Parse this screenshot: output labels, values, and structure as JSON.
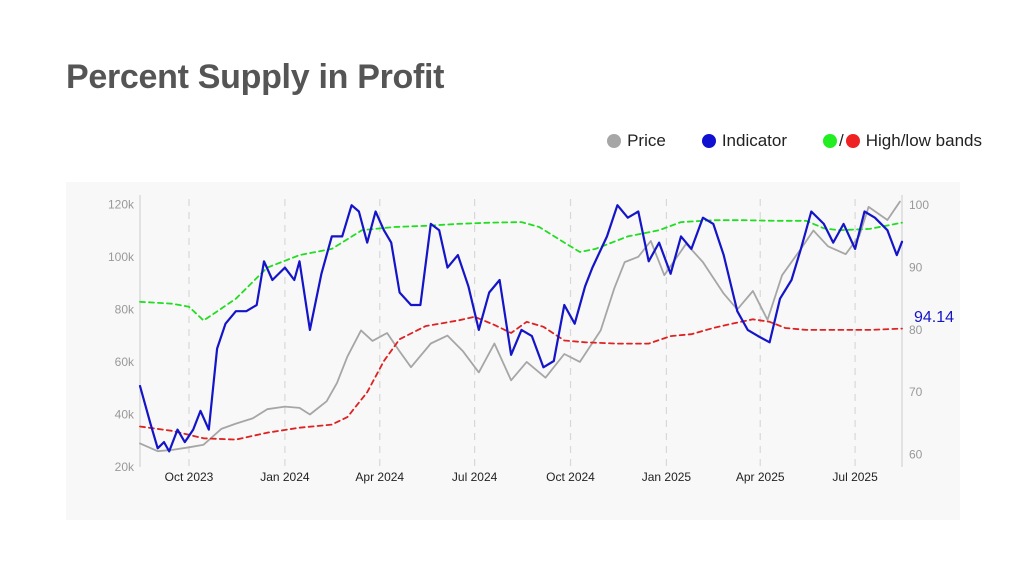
{
  "title": "Percent Supply in Profit",
  "legend": [
    {
      "label": "Price",
      "color": "#a6a6a6",
      "icon": "dot"
    },
    {
      "label": "Indicator",
      "color": "#1010d0",
      "icon": "dot"
    },
    {
      "label": "High/low bands",
      "colors": [
        "#22ee22",
        "#ee2222"
      ],
      "icon": "dot-pair",
      "separator": "/"
    }
  ],
  "colors": {
    "price": "#a6a6a6",
    "indicator": "#1414c8",
    "high_band": "#22dd22",
    "low_band": "#dd2222"
  },
  "chart_data": {
    "type": "line",
    "x_ticks": [
      "Oct 2023",
      "Jan 2024",
      "Apr 2024",
      "Jul 2024",
      "Oct 2024",
      "Jan 2025",
      "Apr 2025",
      "Jul 2025"
    ],
    "x_range": [
      "2023-08-15",
      "2025-08-15"
    ],
    "y_left": {
      "ticks": [
        "20k",
        "40k",
        "60k",
        "80k",
        "100k",
        "120k"
      ],
      "range": [
        20000,
        122000
      ]
    },
    "y_right": {
      "ticks": [
        "60",
        "70",
        "80",
        "90",
        "100"
      ],
      "range": [
        58,
        101
      ]
    },
    "grid": "vertical dashed at month ticks",
    "last_value_label": "94.14",
    "series": [
      {
        "name": "Price",
        "axis": "left",
        "style": "solid",
        "points": [
          [
            "2023-08-15",
            29000
          ],
          [
            "2023-09-01",
            26000
          ],
          [
            "2023-09-15",
            26500
          ],
          [
            "2023-10-01",
            27500
          ],
          [
            "2023-10-15",
            28500
          ],
          [
            "2023-11-01",
            34500
          ],
          [
            "2023-11-15",
            36500
          ],
          [
            "2023-12-01",
            38500
          ],
          [
            "2023-12-15",
            42000
          ],
          [
            "2024-01-01",
            43000
          ],
          [
            "2024-01-15",
            42500
          ],
          [
            "2024-01-25",
            40000
          ],
          [
            "2024-02-10",
            45000
          ],
          [
            "2024-02-20",
            52000
          ],
          [
            "2024-03-01",
            62000
          ],
          [
            "2024-03-14",
            72000
          ],
          [
            "2024-03-25",
            68000
          ],
          [
            "2024-04-08",
            71000
          ],
          [
            "2024-04-20",
            64000
          ],
          [
            "2024-05-01",
            58000
          ],
          [
            "2024-05-20",
            67000
          ],
          [
            "2024-06-05",
            70000
          ],
          [
            "2024-06-20",
            64000
          ],
          [
            "2024-07-05",
            56000
          ],
          [
            "2024-07-20",
            67000
          ],
          [
            "2024-08-05",
            53000
          ],
          [
            "2024-08-20",
            60000
          ],
          [
            "2024-09-07",
            54000
          ],
          [
            "2024-09-25",
            63000
          ],
          [
            "2024-10-10",
            60000
          ],
          [
            "2024-10-30",
            72000
          ],
          [
            "2024-11-12",
            88000
          ],
          [
            "2024-11-22",
            98000
          ],
          [
            "2024-12-05",
            100000
          ],
          [
            "2024-12-17",
            106000
          ],
          [
            "2024-12-30",
            93000
          ],
          [
            "2025-01-20",
            105000
          ],
          [
            "2025-02-05",
            98000
          ],
          [
            "2025-02-25",
            86000
          ],
          [
            "2025-03-10",
            80000
          ],
          [
            "2025-03-25",
            87000
          ],
          [
            "2025-04-08",
            76000
          ],
          [
            "2025-04-22",
            93000
          ],
          [
            "2025-05-10",
            103000
          ],
          [
            "2025-05-22",
            110000
          ],
          [
            "2025-06-05",
            104000
          ],
          [
            "2025-06-22",
            101000
          ],
          [
            "2025-07-05",
            108000
          ],
          [
            "2025-07-14",
            119000
          ],
          [
            "2025-08-01",
            114000
          ],
          [
            "2025-08-13",
            121000
          ]
        ]
      },
      {
        "name": "Indicator",
        "axis": "right",
        "style": "solid",
        "points": [
          [
            "2023-08-15",
            71
          ],
          [
            "2023-08-25",
            65
          ],
          [
            "2023-09-01",
            61
          ],
          [
            "2023-09-07",
            62
          ],
          [
            "2023-09-12",
            60.5
          ],
          [
            "2023-09-20",
            64
          ],
          [
            "2023-09-27",
            62
          ],
          [
            "2023-10-05",
            64
          ],
          [
            "2023-10-12",
            67
          ],
          [
            "2023-10-20",
            64
          ],
          [
            "2023-10-28",
            77
          ],
          [
            "2023-11-05",
            81
          ],
          [
            "2023-11-15",
            83
          ],
          [
            "2023-11-25",
            83
          ],
          [
            "2023-12-05",
            84
          ],
          [
            "2023-12-12",
            91
          ],
          [
            "2023-12-20",
            88
          ],
          [
            "2024-01-01",
            90
          ],
          [
            "2024-01-10",
            88
          ],
          [
            "2024-01-15",
            91
          ],
          [
            "2024-01-25",
            80
          ],
          [
            "2024-02-05",
            89
          ],
          [
            "2024-02-15",
            95
          ],
          [
            "2024-02-25",
            95
          ],
          [
            "2024-03-05",
            100
          ],
          [
            "2024-03-12",
            99
          ],
          [
            "2024-03-20",
            94
          ],
          [
            "2024-03-28",
            99
          ],
          [
            "2024-04-05",
            96
          ],
          [
            "2024-04-12",
            94
          ],
          [
            "2024-04-20",
            86
          ],
          [
            "2024-05-01",
            84
          ],
          [
            "2024-05-10",
            84
          ],
          [
            "2024-05-20",
            97
          ],
          [
            "2024-05-28",
            96
          ],
          [
            "2024-06-05",
            90
          ],
          [
            "2024-06-15",
            92
          ],
          [
            "2024-06-25",
            87
          ],
          [
            "2024-07-05",
            80
          ],
          [
            "2024-07-15",
            86
          ],
          [
            "2024-07-25",
            88
          ],
          [
            "2024-08-05",
            76
          ],
          [
            "2024-08-15",
            80
          ],
          [
            "2024-08-25",
            79
          ],
          [
            "2024-09-05",
            74
          ],
          [
            "2024-09-15",
            75
          ],
          [
            "2024-09-25",
            84
          ],
          [
            "2024-10-05",
            81
          ],
          [
            "2024-10-15",
            87
          ],
          [
            "2024-10-22",
            90
          ],
          [
            "2024-11-05",
            95
          ],
          [
            "2024-11-15",
            100
          ],
          [
            "2024-11-25",
            98
          ],
          [
            "2024-12-05",
            99
          ],
          [
            "2024-12-15",
            91
          ],
          [
            "2024-12-25",
            94
          ],
          [
            "2025-01-05",
            89
          ],
          [
            "2025-01-15",
            95
          ],
          [
            "2025-01-25",
            93
          ],
          [
            "2025-02-05",
            98
          ],
          [
            "2025-02-15",
            97
          ],
          [
            "2025-02-25",
            92
          ],
          [
            "2025-03-10",
            83
          ],
          [
            "2025-03-20",
            80
          ],
          [
            "2025-03-30",
            79
          ],
          [
            "2025-04-10",
            78
          ],
          [
            "2025-04-20",
            85
          ],
          [
            "2025-05-01",
            88
          ],
          [
            "2025-05-10",
            93
          ],
          [
            "2025-05-20",
            99
          ],
          [
            "2025-06-01",
            97
          ],
          [
            "2025-06-10",
            94
          ],
          [
            "2025-06-20",
            97
          ],
          [
            "2025-07-01",
            93
          ],
          [
            "2025-07-10",
            99
          ],
          [
            "2025-07-20",
            98
          ],
          [
            "2025-08-01",
            96
          ],
          [
            "2025-08-10",
            92
          ],
          [
            "2025-08-15",
            94.14
          ]
        ]
      },
      {
        "name": "High band",
        "axis": "right",
        "style": "dashed",
        "points": [
          [
            "2023-08-15",
            84.5
          ],
          [
            "2023-09-15",
            84.2
          ],
          [
            "2023-10-01",
            83.7
          ],
          [
            "2023-10-15",
            81.5
          ],
          [
            "2023-11-15",
            85
          ],
          [
            "2023-12-15",
            90
          ],
          [
            "2024-01-15",
            92
          ],
          [
            "2024-02-15",
            93
          ],
          [
            "2024-03-15",
            96
          ],
          [
            "2024-04-15",
            96.5
          ],
          [
            "2024-05-15",
            96.7
          ],
          [
            "2024-06-15",
            97
          ],
          [
            "2024-07-15",
            97.2
          ],
          [
            "2024-08-15",
            97.3
          ],
          [
            "2024-09-01",
            96.5
          ],
          [
            "2024-09-25",
            94
          ],
          [
            "2024-10-10",
            92.5
          ],
          [
            "2024-10-25",
            93
          ],
          [
            "2024-11-25",
            95
          ],
          [
            "2024-12-25",
            96
          ],
          [
            "2025-01-15",
            97.3
          ],
          [
            "2025-02-15",
            97.6
          ],
          [
            "2025-03-15",
            97.6
          ],
          [
            "2025-04-15",
            97.5
          ],
          [
            "2025-05-15",
            97.5
          ],
          [
            "2025-06-01",
            96.3
          ],
          [
            "2025-06-15",
            96
          ],
          [
            "2025-07-15",
            96.2
          ],
          [
            "2025-08-15",
            97.2
          ]
        ]
      },
      {
        "name": "Low band",
        "axis": "right",
        "style": "dashed",
        "points": [
          [
            "2023-08-15",
            64.5
          ],
          [
            "2023-09-15",
            63.8
          ],
          [
            "2023-10-15",
            62.6
          ],
          [
            "2023-11-15",
            62.4
          ],
          [
            "2023-12-15",
            63.5
          ],
          [
            "2024-01-15",
            64.3
          ],
          [
            "2024-02-15",
            64.8
          ],
          [
            "2024-03-01",
            66
          ],
          [
            "2024-03-20",
            70
          ],
          [
            "2024-04-05",
            75
          ],
          [
            "2024-04-20",
            78.5
          ],
          [
            "2024-05-15",
            80.6
          ],
          [
            "2024-06-15",
            81.5
          ],
          [
            "2024-07-01",
            82.1
          ],
          [
            "2024-07-20",
            80.8
          ],
          [
            "2024-08-05",
            79.5
          ],
          [
            "2024-08-20",
            81.3
          ],
          [
            "2024-09-05",
            80.5
          ],
          [
            "2024-09-25",
            78.3
          ],
          [
            "2024-10-15",
            78
          ],
          [
            "2024-11-15",
            77.8
          ],
          [
            "2024-12-15",
            77.8
          ],
          [
            "2025-01-05",
            79
          ],
          [
            "2025-01-25",
            79.3
          ],
          [
            "2025-02-15",
            80.3
          ],
          [
            "2025-03-05",
            81
          ],
          [
            "2025-03-25",
            81.7
          ],
          [
            "2025-04-10",
            81.3
          ],
          [
            "2025-04-25",
            80.3
          ],
          [
            "2025-05-15",
            80
          ],
          [
            "2025-06-15",
            80
          ],
          [
            "2025-07-15",
            80
          ],
          [
            "2025-08-15",
            80.2
          ]
        ]
      }
    ]
  }
}
